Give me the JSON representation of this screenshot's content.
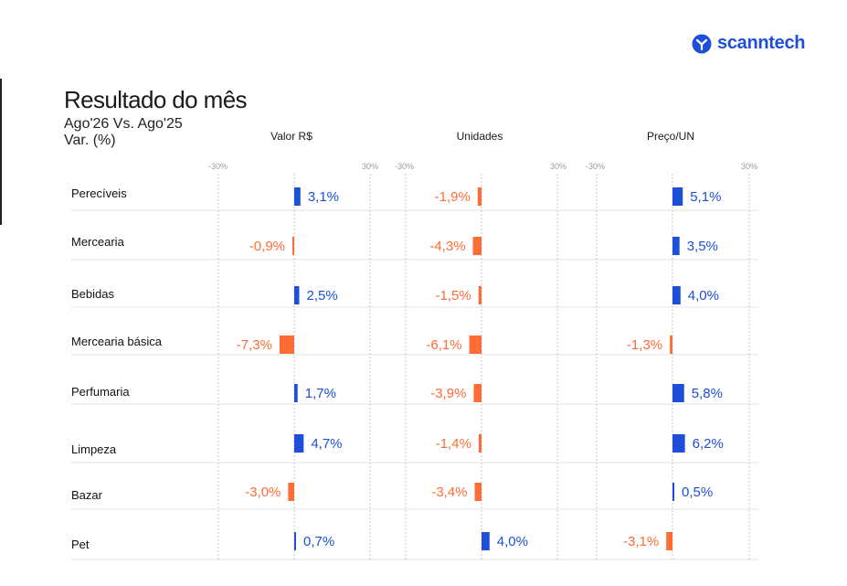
{
  "brand": {
    "name": "scanntech",
    "color": "#1d4fd8"
  },
  "header": {
    "title": "Resultado do mês",
    "subtitle_line1": "Ago'26 Vs. Ago'25",
    "subtitle_line2": "Var. (%)"
  },
  "colors": {
    "positive": "#1d4fd8",
    "negative": "#ff6b35",
    "grid": "#c8c8c8"
  },
  "chart_data": {
    "type": "bar",
    "orientation": "horizontal",
    "categories": [
      "Perecíveis",
      "Mercearia",
      "Bebidas",
      "Mercearia básica",
      "Perfumaria",
      "Limpeza",
      "Bazar",
      "Pet"
    ],
    "xlim": [
      -30,
      30
    ],
    "tick_labels": [
      "-30%",
      "30%"
    ],
    "grid": true,
    "series": [
      {
        "name": "Valor R$",
        "values": [
          3.1,
          -0.9,
          2.5,
          -7.3,
          1.7,
          4.7,
          -3.0,
          0.7
        ],
        "labels": [
          "3,1%",
          "-0,9%",
          "2,5%",
          "-7,3%",
          "1,7%",
          "4,7%",
          "-3,0%",
          "0,7%"
        ]
      },
      {
        "name": "Unidades",
        "values": [
          -1.9,
          -4.3,
          -1.5,
          -6.1,
          -3.9,
          -1.4,
          -3.4,
          4.0
        ],
        "labels": [
          "-1,9%",
          "-4,3%",
          "-1,5%",
          "-6,1%",
          "-3,9%",
          "-1,4%",
          "-3,4%",
          "4,0%"
        ]
      },
      {
        "name": "Preço/UN",
        "values": [
          5.1,
          3.5,
          4.0,
          -1.3,
          5.8,
          6.2,
          0.5,
          -3.1
        ],
        "labels": [
          "5,1%",
          "3,5%",
          "4,0%",
          "-1,3%",
          "5,8%",
          "6,2%",
          "0,5%",
          "-3,1%"
        ]
      }
    ]
  }
}
